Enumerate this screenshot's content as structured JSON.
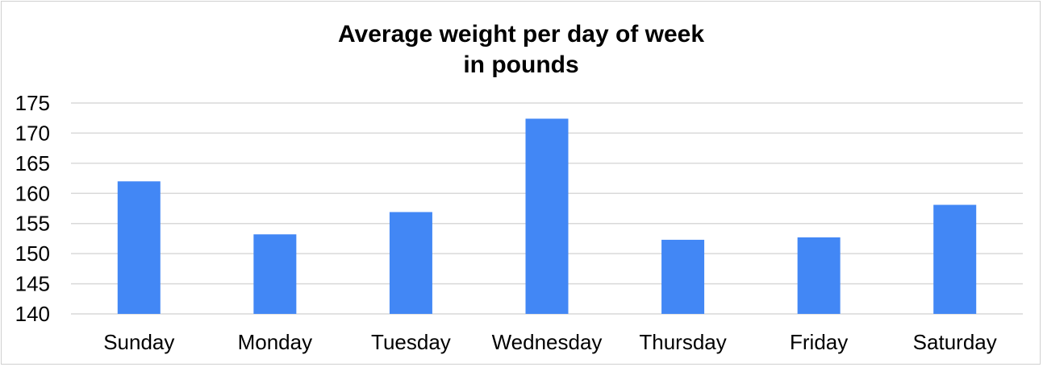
{
  "chart_data": {
    "type": "bar",
    "title_lines": [
      "Average weight per day of week",
      "in pounds"
    ],
    "categories": [
      "Sunday",
      "Monday",
      "Tuesday",
      "Wednesday",
      "Thursday",
      "Friday",
      "Saturday"
    ],
    "values": [
      162,
      153.2,
      156.9,
      172.4,
      152.3,
      152.7,
      158.1
    ],
    "yticks": [
      "175",
      "170",
      "165",
      "160",
      "155",
      "150",
      "145",
      "140"
    ],
    "ylim": [
      140,
      175
    ],
    "ytick_step": 5,
    "grid": true,
    "legend": "none",
    "bar_color": "#4287f5",
    "grid_color": "#d9d9d9"
  }
}
